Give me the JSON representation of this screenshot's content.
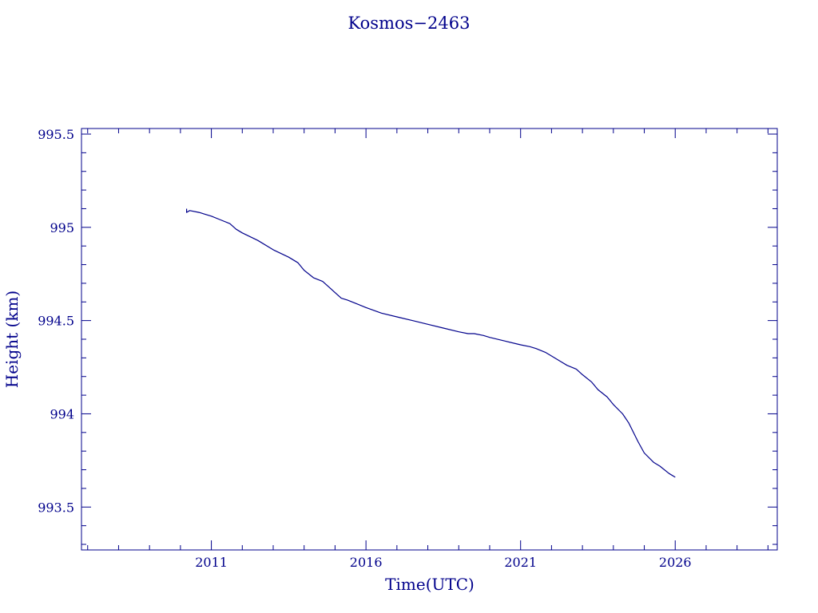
{
  "chart_data": {
    "type": "line",
    "title": "Kosmos−2463",
    "xlabel": "Time(UTC)",
    "ylabel": "Height (km)",
    "xlim": [
      2006.8,
      2029.3
    ],
    "ylim": [
      993.27,
      995.53
    ],
    "x_ticks": [
      2011,
      2016,
      2021,
      2026
    ],
    "x_tick_labels": [
      "2011",
      "2016",
      "2021",
      "2026"
    ],
    "y_ticks": [
      993.5,
      994,
      994.5,
      995,
      995.5
    ],
    "y_tick_labels": [
      "993.5",
      "994",
      "994.5",
      "995",
      "995.5"
    ],
    "line_color": "#00008b",
    "grid": false,
    "series": [
      {
        "x": [
          2010.2,
          2010.2,
          2010.3,
          2010.6,
          2011.0,
          2011.3,
          2011.6,
          2011.8,
          2012.0,
          2012.5,
          2013.0,
          2013.5,
          2013.8,
          2014.0,
          2014.3,
          2014.6,
          2014.8,
          2015.0,
          2015.2,
          2015.4,
          2015.7,
          2016.0,
          2016.5,
          2017.0,
          2017.5,
          2018.0,
          2018.5,
          2019.0,
          2019.3,
          2019.5,
          2019.8,
          2020.0,
          2020.5,
          2021.0,
          2021.3,
          2021.5,
          2021.8,
          2022.0,
          2022.3,
          2022.5,
          2022.8,
          2023.0,
          2023.3,
          2023.5,
          2023.8,
          2024.0,
          2024.3,
          2024.5,
          2024.8,
          2025.0,
          2025.3,
          2025.5,
          2025.8,
          2026.0
        ],
        "y": [
          995.1,
          995.08,
          995.09,
          995.08,
          995.06,
          995.04,
          995.02,
          994.99,
          994.97,
          994.93,
          994.88,
          994.84,
          994.81,
          994.77,
          994.73,
          994.71,
          994.68,
          994.65,
          994.62,
          994.61,
          994.59,
          994.57,
          994.54,
          994.52,
          994.5,
          994.48,
          994.46,
          994.44,
          994.43,
          994.43,
          994.42,
          994.41,
          994.39,
          994.37,
          994.36,
          994.35,
          994.33,
          994.31,
          994.28,
          994.26,
          994.24,
          994.21,
          994.17,
          994.13,
          994.09,
          994.05,
          994.0,
          993.95,
          993.85,
          993.79,
          993.74,
          993.72,
          993.68,
          993.66
        ]
      }
    ]
  }
}
